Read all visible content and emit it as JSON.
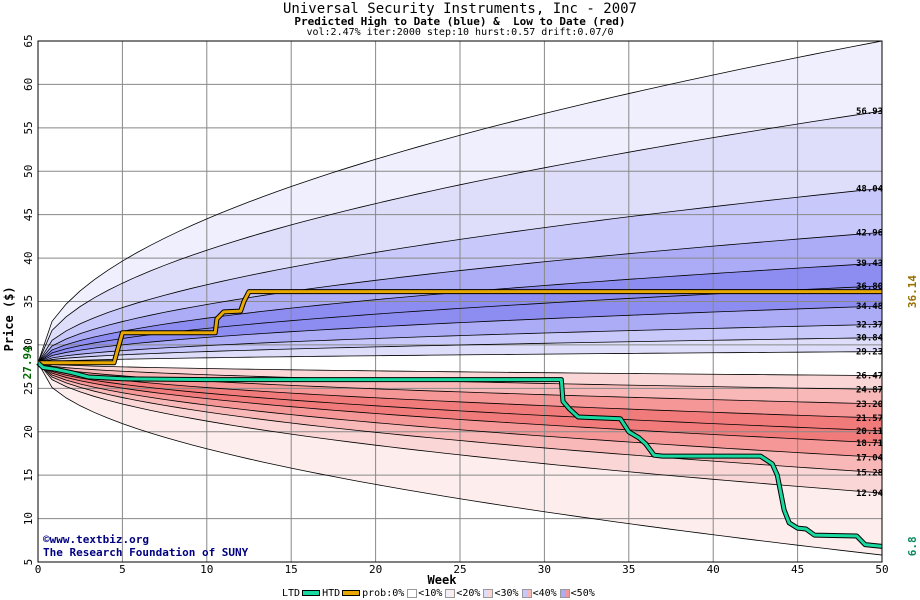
{
  "header": {
    "title": "Universal Security Instruments, Inc - 2007",
    "subtitle": "Predicted High to Date (blue) &  Low to Date (red)",
    "params": "vol:2.47% iter:2000 step:10 hurst:0.57 drift:0.07/0"
  },
  "credits": {
    "url": "©www.textbiz.org",
    "org": "The Research Foundation of SUNY"
  },
  "legend": {
    "ltd": "LTD",
    "htd": "HTD",
    "prob": "prob:0%",
    "bins": [
      "<10%",
      "<20%",
      "<30%",
      "<40%",
      "<50%"
    ],
    "ltd_color": "#1ad9a0",
    "htd_color": "#e8a800"
  },
  "chart_data": {
    "type": "area",
    "title": "Universal Security Instruments, Inc - 2007",
    "xlabel": "Week",
    "ylabel": "Price ($)",
    "xlim": [
      0,
      50
    ],
    "ylim": [
      5,
      65
    ],
    "x_ticks": [
      0,
      5,
      10,
      15,
      20,
      25,
      30,
      35,
      40,
      45,
      50
    ],
    "y_ticks": [
      5,
      10,
      15,
      20,
      25,
      30,
      35,
      40,
      45,
      50,
      55,
      60,
      65
    ],
    "grid": true,
    "start_price": 27.94,
    "start_price_label": "27.94",
    "current_high_label": "36.14",
    "current_low_label": "6.8",
    "high_percentiles": [
      {
        "value": 65.0,
        "label": ""
      },
      {
        "value": 56.93,
        "label": "56.93"
      },
      {
        "value": 48.04,
        "label": "48.04"
      },
      {
        "value": 42.96,
        "label": "42.96"
      },
      {
        "value": 39.43,
        "label": "39.43"
      },
      {
        "value": 36.8,
        "label": "36.80"
      },
      {
        "value": 34.48,
        "label": "34.48"
      },
      {
        "value": 32.37,
        "label": "32.37"
      },
      {
        "value": 30.84,
        "label": "30.84"
      },
      {
        "value": 29.23,
        "label": "29.23"
      }
    ],
    "low_percentiles": [
      {
        "value": 26.47,
        "label": "26.47"
      },
      {
        "value": 24.87,
        "label": "24.87"
      },
      {
        "value": 23.2,
        "label": "23.20"
      },
      {
        "value": 21.57,
        "label": "21.57"
      },
      {
        "value": 20.11,
        "label": "20.11"
      },
      {
        "value": 18.71,
        "label": "18.71"
      },
      {
        "value": 17.04,
        "label": "17.04"
      },
      {
        "value": 15.28,
        "label": "15.28"
      },
      {
        "value": 12.94,
        "label": "12.94"
      },
      {
        "value": 5.8,
        "label": ""
      }
    ],
    "band_colors": {
      "blue": [
        "#efeffd",
        "#dedefb",
        "#c8c8fa",
        "#acacf6",
        "#8c8cf1"
      ],
      "red": [
        "#fdeded",
        "#fbd6d6",
        "#f9b8b8",
        "#f59797",
        "#f17b7b"
      ]
    },
    "series": [
      {
        "name": "HTD",
        "color": "#e8a800",
        "points": [
          [
            0,
            27.94
          ],
          [
            4.5,
            27.94
          ],
          [
            4.6,
            28.6
          ],
          [
            4.8,
            30
          ],
          [
            5,
            31.4
          ],
          [
            10.5,
            31.4
          ],
          [
            10.6,
            33
          ],
          [
            11,
            33.8
          ],
          [
            12,
            33.9
          ],
          [
            12.2,
            35
          ],
          [
            12.5,
            36.14
          ],
          [
            50,
            36.14
          ]
        ]
      },
      {
        "name": "LTD",
        "color": "#1ad9a0",
        "points": [
          [
            0,
            27.94
          ],
          [
            0.3,
            27.4
          ],
          [
            1,
            27.2
          ],
          [
            2,
            26.8
          ],
          [
            3,
            26.3
          ],
          [
            5,
            26.1
          ],
          [
            10,
            26
          ],
          [
            31,
            26
          ],
          [
            31.1,
            23.5
          ],
          [
            31.5,
            22.6
          ],
          [
            32,
            21.7
          ],
          [
            34.5,
            21.5
          ],
          [
            35,
            20
          ],
          [
            35.6,
            19.3
          ],
          [
            36,
            18.6
          ],
          [
            36.5,
            17.3
          ],
          [
            37,
            17.2
          ],
          [
            42.8,
            17.2
          ],
          [
            43.5,
            16.3
          ],
          [
            43.8,
            15
          ],
          [
            44,
            13
          ],
          [
            44.2,
            11
          ],
          [
            44.5,
            9.5
          ],
          [
            45,
            8.9
          ],
          [
            45.5,
            8.8
          ],
          [
            46,
            8.1
          ],
          [
            48.5,
            8
          ],
          [
            49,
            7
          ],
          [
            50,
            6.8
          ]
        ]
      }
    ]
  }
}
